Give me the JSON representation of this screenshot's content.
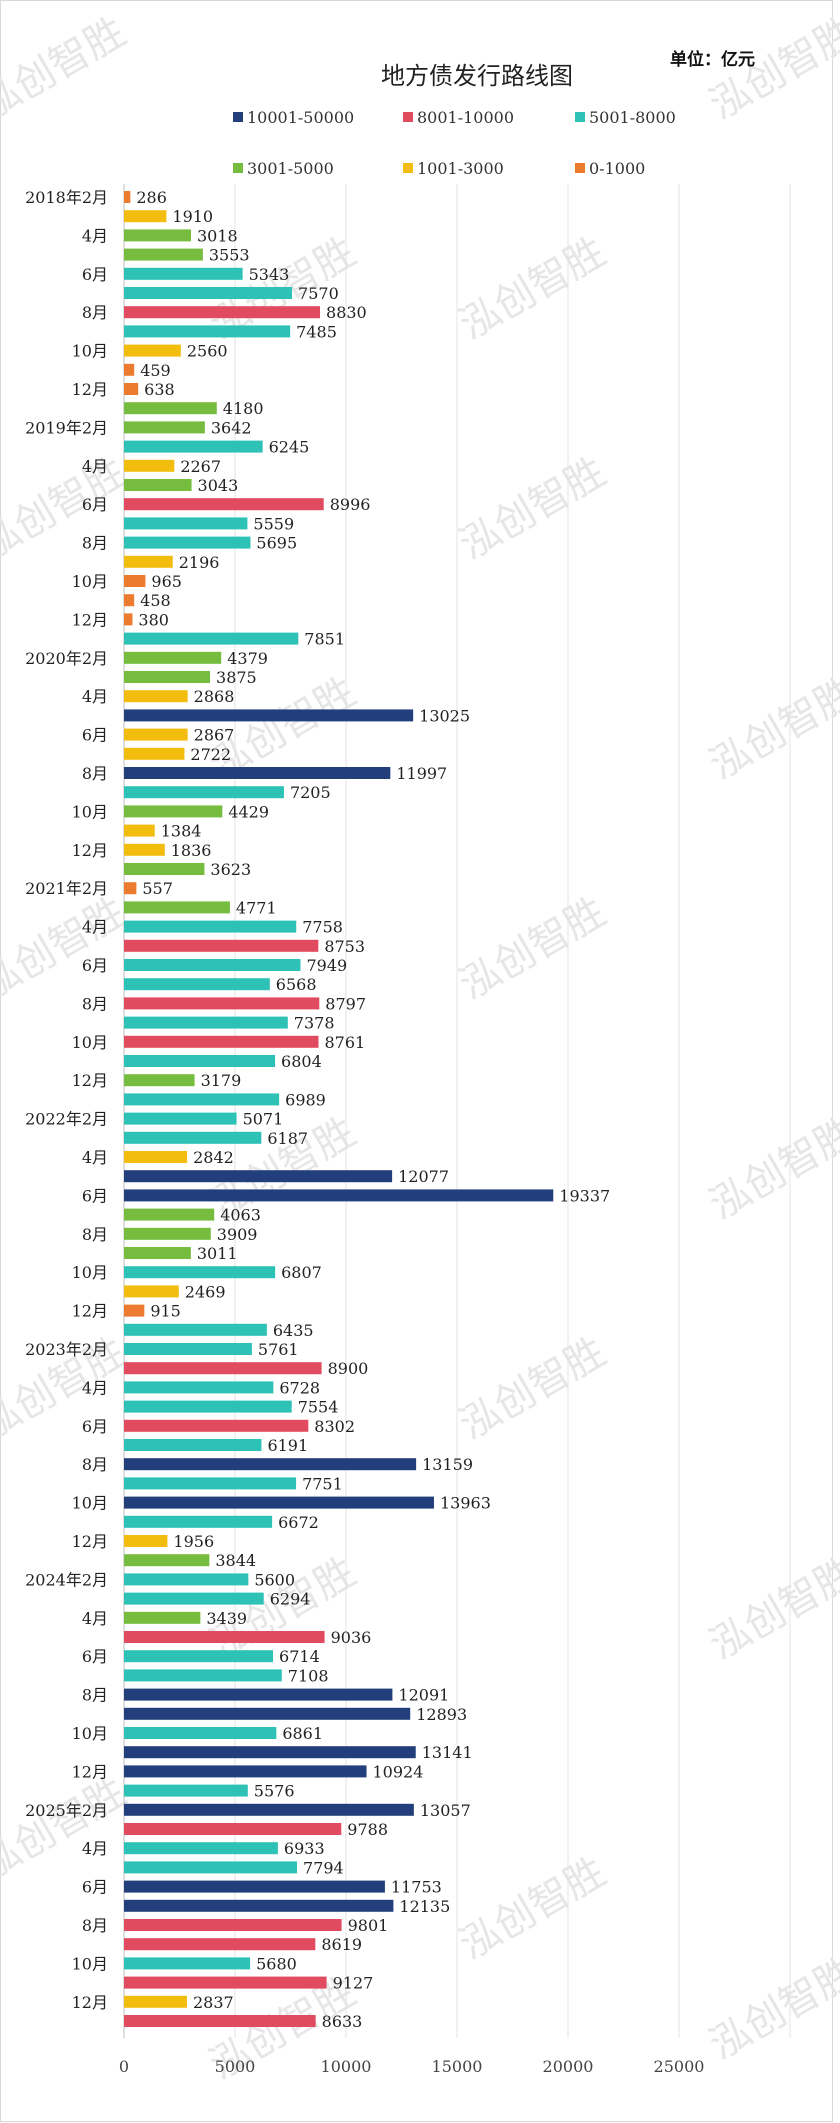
{
  "unit": "单位：亿元",
  "watermark": "泓创智胜",
  "colors": {
    "10001-50000": "#223f7b",
    "8001-10000": "#e04b5f",
    "5001-8000": "#2ec1b5",
    "3001-5000": "#76bc3f",
    "1001-3000": "#f2bd0f",
    "0-1000": "#ec7b2f"
  },
  "chart_data": {
    "type": "bar",
    "orientation": "horizontal",
    "title": "地方债发行路线图",
    "xlim": [
      0,
      30000
    ],
    "xticks": [
      0,
      5000,
      10000,
      15000,
      20000,
      25000
    ],
    "grid": true,
    "legend": [
      {
        "name": "10001-50000",
        "color": "#223f7b"
      },
      {
        "name": "8001-10000",
        "color": "#e04b5f"
      },
      {
        "name": "5001-8000",
        "color": "#2ec1b5"
      },
      {
        "name": "3001-5000",
        "color": "#76bc3f"
      },
      {
        "name": "1001-3000",
        "color": "#f2bd0f"
      },
      {
        "name": "0-1000",
        "color": "#ec7b2f"
      }
    ],
    "category_labels": [
      "2018年2月",
      "4月",
      "6月",
      "8月",
      "10月",
      "12月",
      "2019年2月",
      "4月",
      "6月",
      "8月",
      "10月",
      "12月",
      "2020年2月",
      "4月",
      "6月",
      "8月",
      "10月",
      "12月",
      "2021年2月",
      "4月",
      "6月",
      "8月",
      "10月",
      "12月",
      "2022年2月",
      "4月",
      "6月",
      "8月",
      "10月",
      "12月",
      "2023年2月",
      "4月",
      "6月",
      "8月",
      "10月",
      "12月",
      "2024年2月",
      "4月",
      "6月",
      "8月",
      "10月",
      "12月",
      "2025年2月",
      "4月",
      "6月",
      "8月",
      "10月",
      "12月"
    ],
    "values": [
      286,
      1910,
      3018,
      3553,
      5343,
      7570,
      8830,
      7485,
      2560,
      459,
      638,
      4180,
      3642,
      6245,
      2267,
      3043,
      8996,
      5559,
      5695,
      2196,
      965,
      458,
      380,
      7851,
      4379,
      3875,
      2868,
      13025,
      2867,
      2722,
      11997,
      7205,
      4429,
      1384,
      1836,
      3623,
      557,
      4771,
      7758,
      8753,
      7949,
      6568,
      8797,
      7378,
      8761,
      6804,
      3179,
      6989,
      5071,
      6187,
      2842,
      12077,
      19337,
      4063,
      3909,
      3011,
      6807,
      2469,
      915,
      6435,
      5761,
      8900,
      6728,
      7554,
      8302,
      6191,
      13159,
      7751,
      13963,
      6672,
      1956,
      3844,
      5600,
      6294,
      3439,
      9036,
      6714,
      7108,
      12091,
      12893,
      6861,
      13141,
      10924,
      5576,
      13057,
      9788,
      6933,
      7794,
      11753,
      12135,
      9801,
      8619,
      5680,
      9127,
      2837,
      8633
    ]
  }
}
